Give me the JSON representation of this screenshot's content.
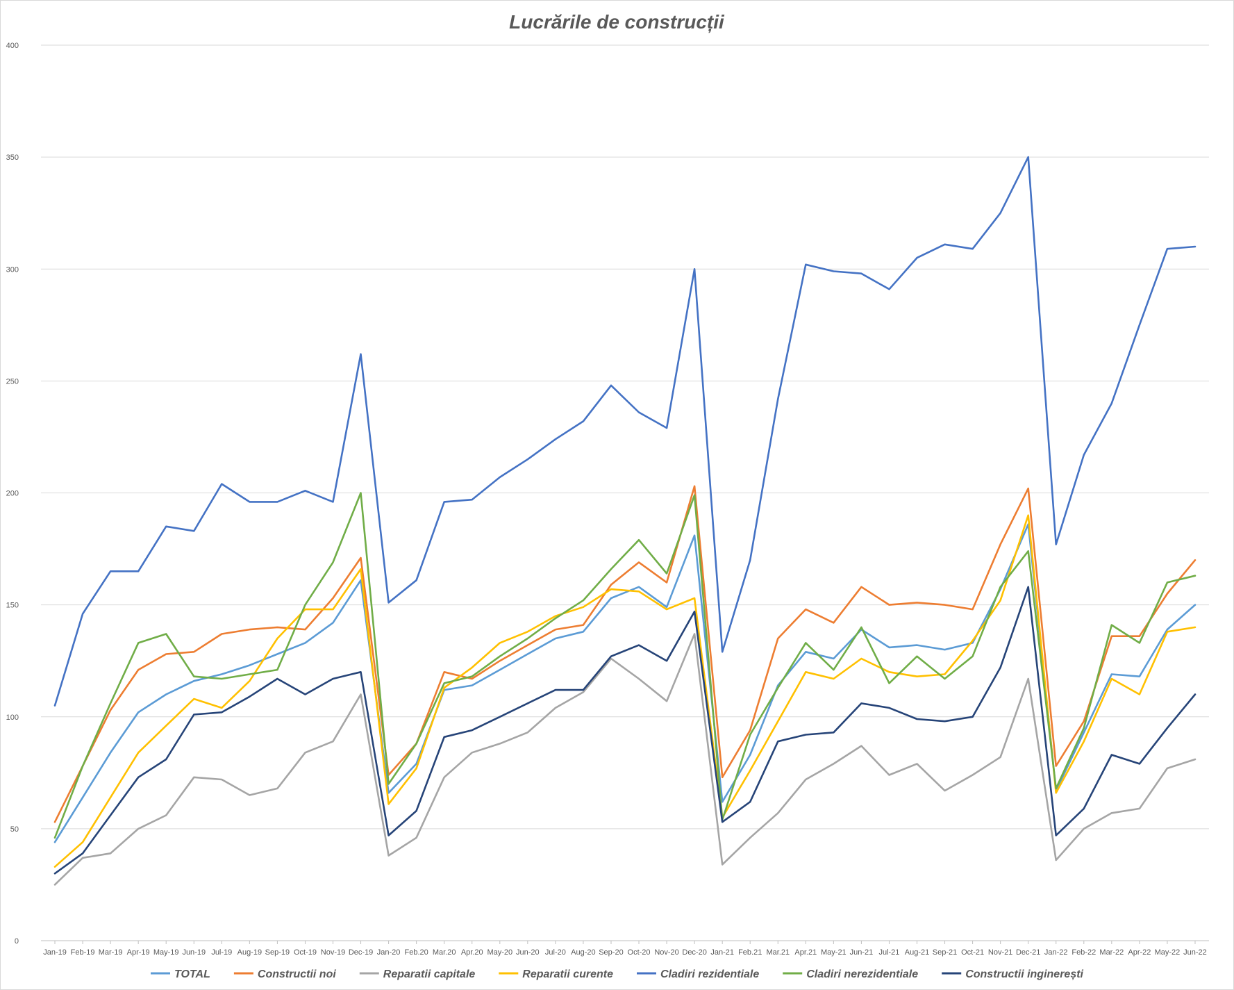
{
  "chart_data": {
    "type": "line",
    "title": "Lucrările de construcții",
    "xlabel": "",
    "ylabel": "",
    "ylim": [
      0,
      400
    ],
    "yticks": [
      0,
      50,
      100,
      150,
      200,
      250,
      300,
      350,
      400
    ],
    "grid": true,
    "legend": "bottom",
    "categories": [
      "Jan-19",
      "Feb-19",
      "Mar-19",
      "Apr-19",
      "May-19",
      "Jun-19",
      "Jul-19",
      "Aug-19",
      "Sep-19",
      "Oct-19",
      "Nov-19",
      "Dec-19",
      "Jan-20",
      "Feb.20",
      "Mar.20",
      "Apr.20",
      "May-20",
      "Jun-20",
      "Jul-20",
      "Aug-20",
      "Sep-20",
      "Oct-20",
      "Nov-20",
      "Dec-20",
      "Jan-21",
      "Feb.21",
      "Mar.21",
      "Apr.21",
      "May-21",
      "Jun-21",
      "Jul-21",
      "Aug-21",
      "Sep-21",
      "Oct-21",
      "Nov-21",
      "Dec-21",
      "Jan-22",
      "Feb-22",
      "Mar-22",
      "Apr-22",
      "May-22",
      "Jun-22"
    ],
    "series": [
      {
        "name": "TOTAL",
        "color": "#5b9bd5",
        "values": [
          44,
          64,
          84,
          102,
          110,
          116,
          119,
          123,
          128,
          133,
          142,
          161,
          66,
          79,
          112,
          114,
          121,
          128,
          135,
          138,
          153,
          158,
          149,
          181,
          62,
          83,
          114,
          129,
          126,
          139,
          131,
          132,
          130,
          133,
          157,
          186,
          67,
          93,
          119,
          118,
          139,
          150
        ]
      },
      {
        "name": "Constructii noi",
        "color": "#ed7d31",
        "values": [
          53,
          78,
          103,
          121,
          128,
          129,
          137,
          139,
          140,
          139,
          153,
          171,
          74,
          88,
          120,
          117,
          125,
          132,
          139,
          141,
          159,
          169,
          160,
          203,
          73,
          94,
          135,
          148,
          142,
          158,
          150,
          151,
          150,
          148,
          177,
          202,
          78,
          98,
          136,
          136,
          155,
          170
        ]
      },
      {
        "name": "Reparatii capitale",
        "color": "#a5a5a5",
        "values": [
          25,
          37,
          39,
          50,
          56,
          73,
          72,
          65,
          68,
          84,
          89,
          110,
          38,
          46,
          73,
          84,
          88,
          93,
          104,
          111,
          126,
          117,
          107,
          137,
          34,
          46,
          57,
          72,
          79,
          87,
          74,
          79,
          67,
          74,
          82,
          117,
          36,
          50,
          57,
          59,
          77,
          81
        ]
      },
      {
        "name": "Reparatii curente",
        "color": "#ffc000",
        "values": [
          33,
          44,
          64,
          84,
          96,
          108,
          104,
          116,
          135,
          148,
          148,
          166,
          61,
          77,
          113,
          122,
          133,
          138,
          145,
          149,
          157,
          156,
          148,
          153,
          55,
          76,
          98,
          120,
          117,
          126,
          120,
          118,
          119,
          134,
          152,
          190,
          66,
          89,
          117,
          110,
          138,
          140
        ]
      },
      {
        "name": "Cladiri rezidentiale",
        "color": "#4472c4",
        "values": [
          105,
          146,
          165,
          165,
          185,
          183,
          204,
          196,
          196,
          201,
          196,
          262,
          151,
          161,
          196,
          197,
          207,
          215,
          224,
          232,
          248,
          236,
          229,
          300,
          129,
          170,
          242,
          302,
          299,
          298,
          291,
          305,
          311,
          309,
          325,
          350,
          177,
          217,
          240,
          275,
          309,
          310
        ]
      },
      {
        "name": "Cladiri nerezidentiale",
        "color": "#70ad47",
        "values": [
          46,
          78,
          106,
          133,
          137,
          118,
          117,
          119,
          121,
          150,
          169,
          200,
          70,
          88,
          115,
          118,
          127,
          135,
          144,
          152,
          166,
          179,
          164,
          199,
          54,
          92,
          113,
          133,
          121,
          140,
          115,
          127,
          117,
          127,
          158,
          174,
          68,
          95,
          141,
          133,
          160,
          163
        ]
      },
      {
        "name": "Constructii inginerești",
        "color": "#264478",
        "values": [
          30,
          39,
          56,
          73,
          81,
          101,
          102,
          109,
          117,
          110,
          117,
          120,
          47,
          58,
          91,
          94,
          100,
          106,
          112,
          112,
          127,
          132,
          125,
          147,
          53,
          62,
          89,
          92,
          93,
          106,
          104,
          99,
          98,
          100,
          122,
          158,
          47,
          59,
          83,
          79,
          95,
          110
        ]
      }
    ]
  }
}
